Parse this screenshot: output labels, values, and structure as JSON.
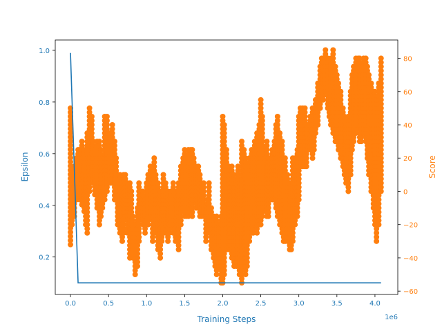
{
  "colors": {
    "epsilon": "#1f77b4",
    "score": "#ff7f0e",
    "axis": "#000000"
  },
  "chart_data": {
    "type": "line",
    "x_label": "Training Steps",
    "x_offset_label": "1e6",
    "x_ticks": [
      "0.0",
      "0.5",
      "1.0",
      "1.5",
      "2.0",
      "2.5",
      "3.0",
      "3.5",
      "4.0"
    ],
    "xlim": [
      -0.2,
      4.3
    ],
    "left_axis": {
      "label": "Epsilon",
      "ylim": [
        0.055,
        1.04
      ],
      "ticks": [
        "0.2",
        "0.4",
        "0.6",
        "0.8",
        "1.0"
      ]
    },
    "right_axis": {
      "label": "Score",
      "ylim": [
        -62,
        91
      ],
      "ticks": [
        "−60",
        "−40",
        "−20",
        "0",
        "20",
        "40",
        "60",
        "80"
      ]
    },
    "series": [
      {
        "axis": "left",
        "style": "line",
        "x": [
          0.0,
          0.1,
          4.08
        ],
        "y": [
          0.99,
          0.1,
          0.1
        ]
      },
      {
        "axis": "right",
        "style": "scatter",
        "x": [
          0.0,
          0.02,
          0.05,
          0.08,
          0.1,
          0.12,
          0.15,
          0.18,
          0.2,
          0.22,
          0.25,
          0.28,
          0.3,
          0.32,
          0.35,
          0.38,
          0.4,
          0.42,
          0.45,
          0.48,
          0.5,
          0.52,
          0.55,
          0.58,
          0.6,
          0.62,
          0.65,
          0.68,
          0.7,
          0.72,
          0.75,
          0.78,
          0.8,
          0.82,
          0.85,
          0.88,
          0.9,
          0.92,
          0.95,
          0.98,
          1.0,
          1.02,
          1.05,
          1.08,
          1.1,
          1.12,
          1.15,
          1.18,
          1.2,
          1.22,
          1.25,
          1.28,
          1.3,
          1.32,
          1.35,
          1.38,
          1.4,
          1.42,
          1.45,
          1.48,
          1.5,
          1.52,
          1.55,
          1.58,
          1.6,
          1.62,
          1.65,
          1.68,
          1.7,
          1.72,
          1.75,
          1.78,
          1.8,
          1.82,
          1.85,
          1.88,
          1.9,
          1.92,
          1.95,
          1.98,
          2.0,
          2.02,
          2.05,
          2.08,
          2.1,
          2.12,
          2.15,
          2.18,
          2.2,
          2.22,
          2.25,
          2.28,
          2.3,
          2.32,
          2.35,
          2.38,
          2.4,
          2.42,
          2.45,
          2.48,
          2.5,
          2.52,
          2.55,
          2.58,
          2.6,
          2.62,
          2.65,
          2.68,
          2.7,
          2.72,
          2.75,
          2.78,
          2.8,
          2.82,
          2.85,
          2.88,
          2.9,
          2.92,
          2.95,
          2.98,
          3.0,
          3.02,
          3.05,
          3.08,
          3.1,
          3.12,
          3.15,
          3.18,
          3.2,
          3.22,
          3.25,
          3.28,
          3.3,
          3.32,
          3.35,
          3.38,
          3.4,
          3.42,
          3.45,
          3.48,
          3.5,
          3.52,
          3.55,
          3.58,
          3.6,
          3.62,
          3.65,
          3.68,
          3.7,
          3.72,
          3.75,
          3.78,
          3.8,
          3.82,
          3.85,
          3.88,
          3.9,
          3.92,
          3.95,
          3.98,
          4.0,
          4.02,
          4.05,
          4.08
        ],
        "y_low": [
          -32,
          -20,
          -15,
          -5,
          0,
          -5,
          -8,
          -12,
          -20,
          -25,
          0,
          10,
          5,
          -2,
          -10,
          -20,
          -15,
          -10,
          -5,
          0,
          5,
          5,
          5,
          -5,
          -5,
          -20,
          -25,
          -30,
          -25,
          -15,
          -25,
          -40,
          -35,
          -40,
          -50,
          -45,
          -30,
          -15,
          -20,
          -25,
          -15,
          -20,
          -15,
          -30,
          -20,
          -25,
          -35,
          -40,
          -30,
          -25,
          -25,
          -30,
          -25,
          -20,
          -25,
          -30,
          -30,
          -35,
          -20,
          -10,
          -15,
          -15,
          -15,
          -10,
          -15,
          -5,
          -10,
          -10,
          -15,
          -15,
          -15,
          -30,
          -25,
          -25,
          -35,
          -40,
          -45,
          -50,
          -45,
          -55,
          -55,
          -50,
          -35,
          -35,
          -35,
          -40,
          -45,
          -45,
          -40,
          -50,
          -55,
          -45,
          -50,
          -45,
          -30,
          -25,
          -25,
          -20,
          -25,
          -20,
          -20,
          -15,
          -10,
          -15,
          -15,
          -5,
          -5,
          -5,
          -10,
          -15,
          -20,
          -25,
          -30,
          -30,
          -30,
          -35,
          -35,
          -30,
          -20,
          -15,
          -5,
          15,
          15,
          15,
          15,
          25,
          25,
          20,
          25,
          35,
          40,
          50,
          55,
          55,
          60,
          50,
          45,
          40,
          35,
          30,
          30,
          25,
          20,
          15,
          10,
          5,
          0,
          10,
          25,
          30,
          35,
          40,
          30,
          30,
          35,
          30,
          20,
          10,
          0,
          -10,
          -20,
          -30,
          -20,
          0
        ],
        "y_high": [
          50,
          10,
          15,
          20,
          25,
          25,
          30,
          25,
          10,
          35,
          50,
          45,
          30,
          25,
          30,
          30,
          25,
          20,
          45,
          45,
          35,
          35,
          40,
          30,
          20,
          10,
          10,
          5,
          10,
          10,
          5,
          5,
          0,
          -15,
          -20,
          -10,
          5,
          0,
          0,
          -5,
          5,
          10,
          15,
          15,
          20,
          10,
          5,
          0,
          0,
          10,
          5,
          0,
          -5,
          0,
          5,
          0,
          -5,
          5,
          15,
          20,
          25,
          20,
          25,
          25,
          25,
          20,
          15,
          15,
          10,
          5,
          5,
          -10,
          -5,
          5,
          -10,
          -15,
          -20,
          -15,
          -20,
          -15,
          45,
          40,
          25,
          15,
          10,
          15,
          10,
          5,
          15,
          5,
          30,
          25,
          20,
          15,
          20,
          25,
          25,
          30,
          35,
          40,
          55,
          45,
          25,
          30,
          20,
          20,
          25,
          30,
          40,
          45,
          35,
          30,
          20,
          20,
          10,
          5,
          0,
          20,
          20,
          25,
          45,
          50,
          50,
          50,
          40,
          40,
          45,
          50,
          45,
          55,
          65,
          75,
          80,
          80,
          85,
          80,
          75,
          80,
          85,
          75,
          70,
          65,
          60,
          50,
          45,
          40,
          45,
          60,
          70,
          75,
          80,
          80,
          80,
          75,
          80,
          80,
          75,
          70,
          65,
          60,
          60,
          55,
          65,
          80
        ]
      }
    ]
  }
}
